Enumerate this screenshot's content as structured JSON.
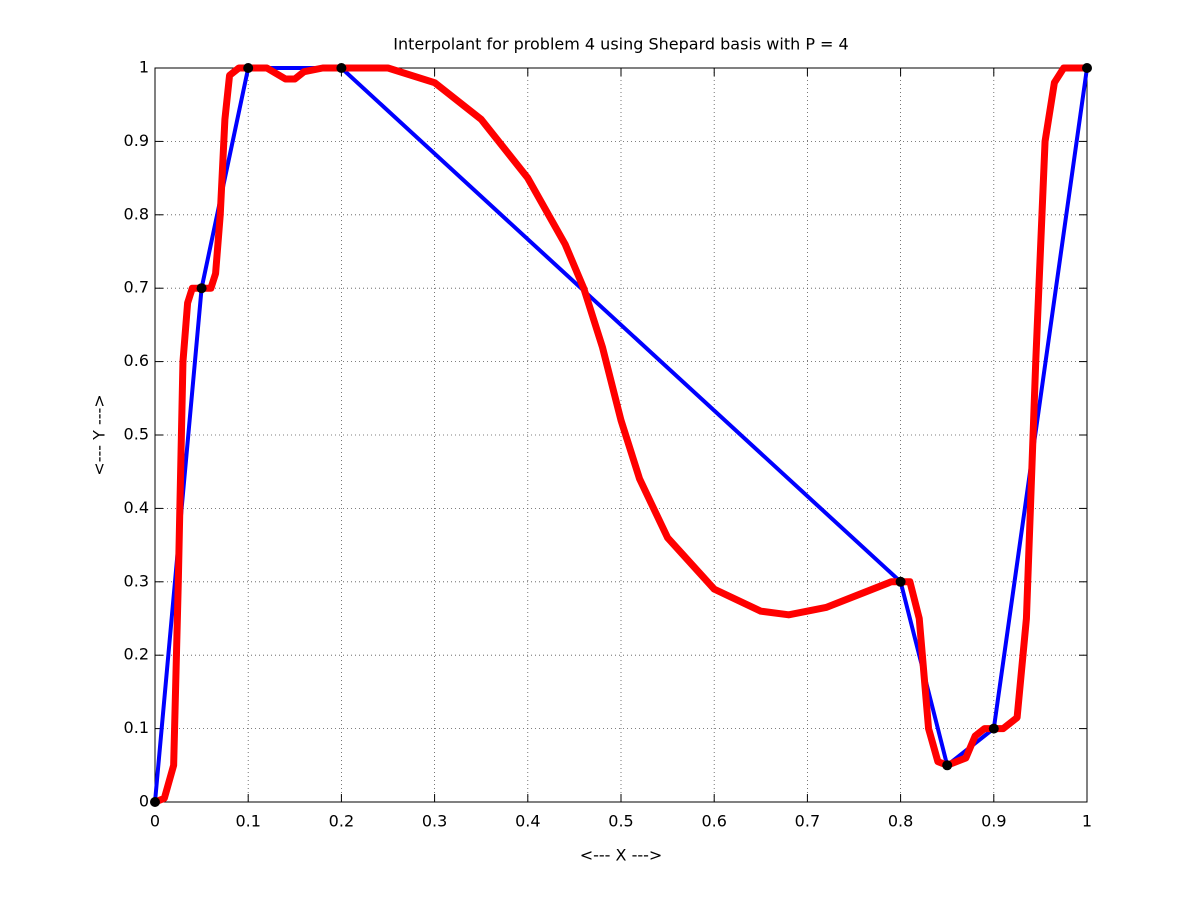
{
  "chart_data": {
    "type": "line",
    "title": "Interpolant for problem 4 using Shepard basis with P = 4",
    "xlabel": "<--- X --->",
    "ylabel": "<--- Y --->",
    "xlim": [
      0,
      1
    ],
    "ylim": [
      0,
      1
    ],
    "xticks": [
      0,
      0.1,
      0.2,
      0.3,
      0.4,
      0.5,
      0.6,
      0.7,
      0.8,
      0.9,
      1
    ],
    "yticks": [
      0,
      0.1,
      0.2,
      0.3,
      0.4,
      0.5,
      0.6,
      0.7,
      0.8,
      0.9,
      1
    ],
    "grid": true,
    "series": [
      {
        "color": "#0000ff",
        "style": "line",
        "width": 4,
        "x": [
          0,
          0.05,
          0.1,
          0.2,
          0.8,
          0.85,
          0.9,
          1
        ],
        "values": [
          0,
          0.7,
          1,
          1,
          0.3,
          0.05,
          0.1,
          1
        ]
      },
      {
        "color": "#ff0000",
        "style": "line",
        "width": 7,
        "x": [
          0,
          0.01,
          0.02,
          0.025,
          0.03,
          0.035,
          0.04,
          0.05,
          0.06,
          0.065,
          0.07,
          0.075,
          0.08,
          0.09,
          0.1,
          0.12,
          0.14,
          0.15,
          0.16,
          0.18,
          0.2,
          0.25,
          0.3,
          0.35,
          0.4,
          0.44,
          0.46,
          0.48,
          0.5,
          0.52,
          0.55,
          0.6,
          0.65,
          0.68,
          0.72,
          0.76,
          0.79,
          0.8,
          0.81,
          0.82,
          0.83,
          0.84,
          0.85,
          0.87,
          0.88,
          0.89,
          0.9,
          0.91,
          0.925,
          0.935,
          0.945,
          0.955,
          0.965,
          0.975,
          1
        ],
        "values": [
          0,
          0.005,
          0.05,
          0.3,
          0.6,
          0.68,
          0.7,
          0.7,
          0.7,
          0.72,
          0.8,
          0.93,
          0.99,
          1,
          1,
          1,
          0.985,
          0.985,
          0.995,
          1,
          1,
          1,
          0.98,
          0.93,
          0.85,
          0.76,
          0.7,
          0.62,
          0.52,
          0.44,
          0.36,
          0.29,
          0.26,
          0.255,
          0.265,
          0.285,
          0.3,
          0.3,
          0.3,
          0.25,
          0.1,
          0.055,
          0.05,
          0.06,
          0.09,
          0.1,
          0.1,
          0.1,
          0.115,
          0.25,
          0.6,
          0.9,
          0.98,
          1,
          1
        ]
      },
      {
        "color": "#000000",
        "style": "marker",
        "width": 5,
        "x": [
          0,
          0.05,
          0.1,
          0.2,
          0.8,
          0.85,
          0.9,
          1
        ],
        "values": [
          0,
          0.7,
          1,
          1,
          0.3,
          0.05,
          0.1,
          1
        ]
      }
    ]
  }
}
